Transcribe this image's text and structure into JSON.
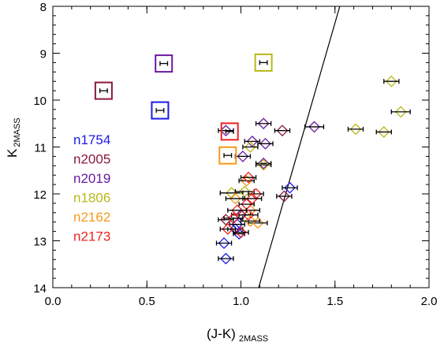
{
  "chart_data": {
    "type": "scatter",
    "xlabel": "(J-K)",
    "xlabel_sub": "2MASS",
    "ylabel": "K",
    "ylabel_sub": "2MASS",
    "xlim": [
      0.0,
      2.0
    ],
    "ylim": [
      14,
      8
    ],
    "y_inverted": true,
    "x_ticks": [
      "0.0",
      "0.5",
      "1.0",
      "1.5",
      "2.0"
    ],
    "x_tick_values": [
      0.0,
      0.5,
      1.0,
      1.5,
      2.0
    ],
    "y_ticks": [
      "8",
      "9",
      "10",
      "11",
      "12",
      "13",
      "14"
    ],
    "y_tick_values": [
      8,
      9,
      10,
      11,
      12,
      13,
      14
    ],
    "grid": false,
    "legend_placement": "left",
    "legend": [
      {
        "label": "n1754",
        "color": "#1a1ae6"
      },
      {
        "label": "n2005",
        "color": "#8b1a3a"
      },
      {
        "label": "n2019",
        "color": "#6a1aa0"
      },
      {
        "label": "n1806",
        "color": "#b8b81a"
      },
      {
        "label": "n2162",
        "color": "#f59a1a"
      },
      {
        "label": "n2173",
        "color": "#ee2222"
      }
    ],
    "line": {
      "x": [
        1.08,
        1.54
      ],
      "y": [
        14.2,
        7.8
      ]
    },
    "cluster_means": [
      {
        "cluster": "n1754",
        "x": 0.57,
        "y": 10.22,
        "xerr": 0.02
      },
      {
        "cluster": "n2005",
        "x": 0.27,
        "y": 9.8,
        "xerr": 0.02
      },
      {
        "cluster": "n2019",
        "x": 0.59,
        "y": 9.22,
        "xerr": 0.02
      },
      {
        "cluster": "n1806",
        "x": 1.12,
        "y": 9.2,
        "xerr": 0.02
      },
      {
        "cluster": "n2162",
        "x": 0.93,
        "y": 11.18,
        "xerr": 0.02
      },
      {
        "cluster": "n2173",
        "x": 0.94,
        "y": 10.67,
        "xerr": 0.02
      }
    ],
    "stars": [
      {
        "cluster": "n1754",
        "x": 0.92,
        "y": 13.38,
        "xerr": 0.04
      },
      {
        "cluster": "n1754",
        "x": 0.91,
        "y": 13.05,
        "xerr": 0.04
      },
      {
        "cluster": "n1754",
        "x": 0.97,
        "y": 12.75,
        "xerr": 0.04
      },
      {
        "cluster": "n1754",
        "x": 0.99,
        "y": 12.85,
        "xerr": 0.03
      },
      {
        "cluster": "n1754",
        "x": 1.26,
        "y": 11.87,
        "xerr": 0.04
      },
      {
        "cluster": "n1754",
        "x": 0.98,
        "y": 12.65,
        "xerr": 0.04
      },
      {
        "cluster": "n2005",
        "x": 1.23,
        "y": 12.05,
        "xerr": 0.04
      },
      {
        "cluster": "n2005",
        "x": 1.22,
        "y": 10.65,
        "xerr": 0.04
      },
      {
        "cluster": "n2005",
        "x": 0.92,
        "y": 12.55,
        "xerr": 0.04
      },
      {
        "cluster": "n2019",
        "x": 1.39,
        "y": 10.57,
        "xerr": 0.05
      },
      {
        "cluster": "n2019",
        "x": 1.12,
        "y": 10.5,
        "xerr": 0.04
      },
      {
        "cluster": "n2019",
        "x": 1.13,
        "y": 10.93,
        "xerr": 0.04
      },
      {
        "cluster": "n2019",
        "x": 1.06,
        "y": 10.88,
        "xerr": 0.04
      },
      {
        "cluster": "n2019",
        "x": 1.01,
        "y": 11.2,
        "xerr": 0.04
      },
      {
        "cluster": "n2019",
        "x": 0.92,
        "y": 10.65,
        "xerr": 0.04
      },
      {
        "cluster": "n2019",
        "x": 1.12,
        "y": 11.35,
        "xerr": 0.04
      },
      {
        "cluster": "n2019",
        "x": 1.0,
        "y": 12.45,
        "xerr": 0.05
      },
      {
        "cluster": "n1806",
        "x": 1.8,
        "y": 9.6,
        "xerr": 0.04
      },
      {
        "cluster": "n1806",
        "x": 1.85,
        "y": 10.25,
        "xerr": 0.05
      },
      {
        "cluster": "n1806",
        "x": 1.61,
        "y": 10.62,
        "xerr": 0.04
      },
      {
        "cluster": "n1806",
        "x": 1.76,
        "y": 10.68,
        "xerr": 0.04
      },
      {
        "cluster": "n1806",
        "x": 1.05,
        "y": 11.0,
        "xerr": 0.04
      },
      {
        "cluster": "n1806",
        "x": 1.12,
        "y": 11.38,
        "xerr": 0.04
      },
      {
        "cluster": "n1806",
        "x": 0.95,
        "y": 11.98,
        "xerr": 0.06
      },
      {
        "cluster": "n1806",
        "x": 1.02,
        "y": 11.95,
        "xerr": 0.05
      },
      {
        "cluster": "n2162",
        "x": 1.03,
        "y": 11.72,
        "xerr": 0.04
      },
      {
        "cluster": "n2162",
        "x": 0.97,
        "y": 12.1,
        "xerr": 0.05
      },
      {
        "cluster": "n2162",
        "x": 1.05,
        "y": 12.35,
        "xerr": 0.05
      },
      {
        "cluster": "n2162",
        "x": 1.09,
        "y": 12.62,
        "xerr": 0.05
      },
      {
        "cluster": "n2162",
        "x": 1.05,
        "y": 12.58,
        "xerr": 0.05
      },
      {
        "cluster": "n2173",
        "x": 1.04,
        "y": 11.65,
        "xerr": 0.04
      },
      {
        "cluster": "n2173",
        "x": 1.08,
        "y": 12.0,
        "xerr": 0.04
      },
      {
        "cluster": "n2173",
        "x": 1.03,
        "y": 12.22,
        "xerr": 0.04
      },
      {
        "cluster": "n2173",
        "x": 1.04,
        "y": 12.45,
        "xerr": 0.05
      },
      {
        "cluster": "n2173",
        "x": 0.96,
        "y": 12.52,
        "xerr": 0.05
      },
      {
        "cluster": "n2173",
        "x": 1.0,
        "y": 12.82,
        "xerr": 0.04
      },
      {
        "cluster": "n2173",
        "x": 0.98,
        "y": 12.35,
        "xerr": 0.05
      },
      {
        "cluster": "n2173",
        "x": 1.06,
        "y": 12.1,
        "xerr": 0.05
      },
      {
        "cluster": "n2173",
        "x": 0.93,
        "y": 12.75,
        "xerr": 0.04
      }
    ]
  }
}
